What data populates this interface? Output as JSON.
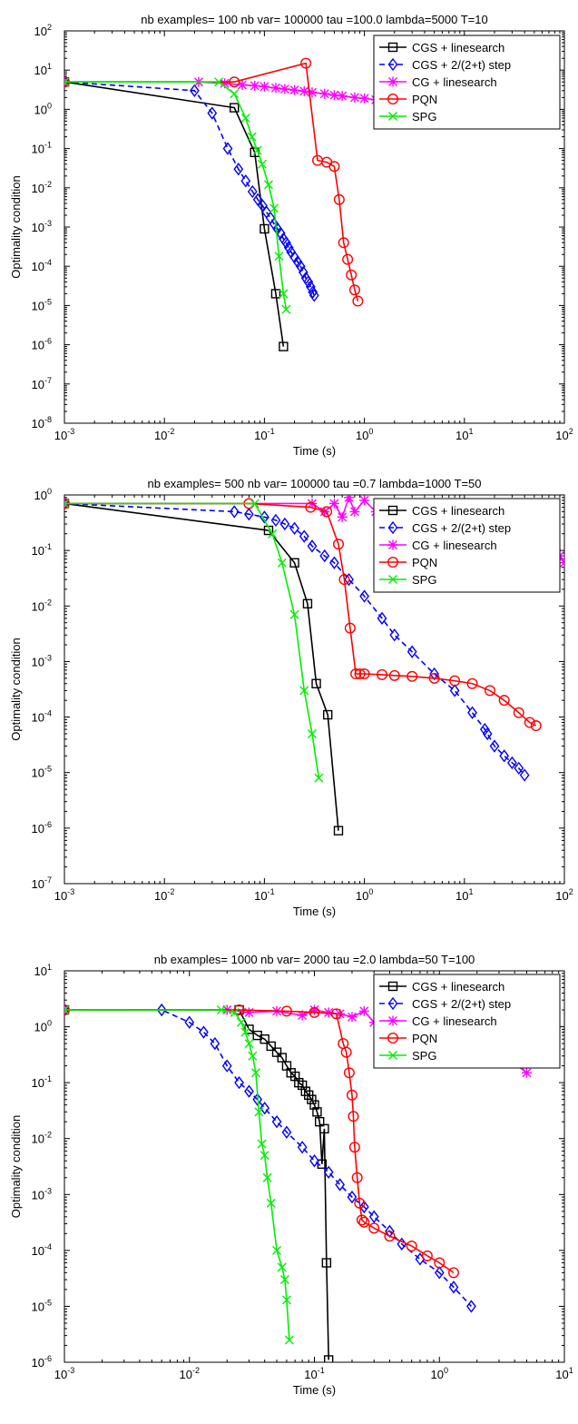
{
  "chart_data": [
    {
      "type": "line",
      "title": "nb examples= 100  nb var= 100000  tau =100.0 lambda=5000 T=10",
      "xlabel": "Time (s)",
      "ylabel": "Optimality condition",
      "xscale": "log",
      "yscale": "log",
      "xlim": [
        0.001,
        100
      ],
      "ylim": [
        1e-08,
        100
      ],
      "legend_position": "top-right",
      "series": [
        {
          "name": "CGS + linesearch",
          "color": "#000000",
          "dash": "solid",
          "marker": "square",
          "x": [
            0.001,
            0.05,
            0.08,
            0.1,
            0.13,
            0.155
          ],
          "y": [
            5,
            1.1,
            0.08,
            0.0009,
            2e-05,
            9e-07
          ]
        },
        {
          "name": "CGS + 2/(2+t) step",
          "color": "#0000ff",
          "dash": "dashed",
          "marker": "diamond",
          "x": [
            0.001,
            0.02,
            0.03,
            0.043,
            0.055,
            0.065,
            0.076,
            0.086,
            0.096,
            0.105,
            0.115,
            0.125,
            0.135,
            0.145,
            0.155,
            0.165,
            0.175,
            0.185,
            0.2,
            0.215,
            0.23,
            0.245,
            0.26,
            0.275,
            0.29,
            0.305,
            0.315
          ],
          "y": [
            5,
            3,
            0.8,
            0.1,
            0.03,
            0.015,
            0.008,
            0.005,
            0.0035,
            0.0024,
            0.0017,
            0.0012,
            0.0009,
            0.0007,
            0.0005,
            0.0004,
            0.0003,
            0.00023,
            0.00017,
            0.00013,
            0.0001,
            7e-05,
            5e-05,
            4e-05,
            3e-05,
            2.2e-05,
            1.8e-05
          ]
        },
        {
          "name": "CG + linesearch",
          "color": "#ff00ff",
          "dash": "solid",
          "marker": "star",
          "x": [
            0.001,
            0.022,
            0.04,
            0.06,
            0.08,
            0.1,
            0.13,
            0.16,
            0.2,
            0.25,
            0.3,
            0.4,
            0.5,
            0.6,
            0.8,
            1.0,
            1.3,
            1.6,
            2.0,
            2.5,
            3.0,
            3.5
          ],
          "y": [
            5,
            5,
            4.6,
            4.2,
            4.0,
            3.8,
            3.5,
            3.3,
            3.1,
            2.9,
            2.7,
            2.5,
            2.3,
            2.2,
            2.0,
            1.9,
            1.75,
            1.6,
            1.5,
            1.4,
            1.3,
            1.25
          ]
        },
        {
          "name": "PQN",
          "color": "#ff0000",
          "dash": "solid",
          "marker": "circle",
          "x": [
            0.001,
            0.05,
            0.26,
            0.34,
            0.42,
            0.5,
            0.56,
            0.62,
            0.68,
            0.74,
            0.8,
            0.86
          ],
          "y": [
            5,
            5,
            15,
            0.05,
            0.045,
            0.035,
            0.005,
            0.0004,
            0.00015,
            6e-05,
            2.5e-05,
            1.3e-05
          ]
        },
        {
          "name": "SPG",
          "color": "#00ee00",
          "dash": "solid",
          "marker": "x",
          "x": [
            0.001,
            0.035,
            0.05,
            0.065,
            0.075,
            0.085,
            0.095,
            0.11,
            0.125,
            0.14,
            0.155,
            0.165
          ],
          "y": [
            5,
            5,
            2.5,
            0.6,
            0.2,
            0.09,
            0.04,
            0.012,
            0.003,
            0.00018,
            2e-05,
            8e-06
          ]
        }
      ]
    },
    {
      "type": "line",
      "title": "nb examples= 500  nb var= 100000  tau =0.7 lambda=1000 T=50",
      "xlabel": "Time (s)",
      "ylabel": "Optimality condition",
      "xscale": "log",
      "yscale": "log",
      "xlim": [
        0.001,
        100
      ],
      "ylim": [
        1e-07,
        1
      ],
      "legend_position": "top-right",
      "series": [
        {
          "name": "CGS + linesearch",
          "color": "#000000",
          "dash": "solid",
          "marker": "square",
          "x": [
            0.001,
            0.11,
            0.2,
            0.27,
            0.33,
            0.43,
            0.55
          ],
          "y": [
            0.7,
            0.23,
            0.06,
            0.011,
            0.0004,
            0.00011,
            9e-07
          ]
        },
        {
          "name": "CGS + 2/(2+t) step",
          "color": "#0000ff",
          "dash": "dashed",
          "marker": "diamond",
          "x": [
            0.001,
            0.05,
            0.07,
            0.1,
            0.13,
            0.16,
            0.2,
            0.25,
            0.3,
            0.4,
            0.5,
            0.7,
            1.0,
            1.5,
            2.0,
            3.0,
            5.0,
            8.0,
            12.0,
            16.0,
            17.0,
            20.0,
            25.0,
            30.0,
            35.0,
            40.0
          ],
          "y": [
            0.7,
            0.5,
            0.45,
            0.4,
            0.35,
            0.3,
            0.25,
            0.18,
            0.12,
            0.08,
            0.06,
            0.03,
            0.015,
            0.006,
            0.003,
            0.0015,
            0.0006,
            0.0003,
            0.00012,
            6e-05,
            5e-05,
            3e-05,
            2e-05,
            1.5e-05,
            1.2e-05,
            9e-06
          ]
        },
        {
          "name": "CG + linesearch",
          "color": "#ff00ff",
          "dash": "solid",
          "marker": "star",
          "x": [
            0.001,
            0.3,
            0.4,
            0.5,
            0.6,
            0.7,
            0.8,
            1.0,
            1.3,
            1.6,
            2.0,
            2.5,
            3.0,
            4.0,
            5.0,
            6.0,
            8.0,
            10.0,
            13.0,
            16.0,
            20.0,
            25.0,
            30.0,
            40.0,
            50.0,
            60.0,
            70.0,
            80.0,
            90.0,
            100.0
          ],
          "y": [
            0.7,
            0.7,
            0.5,
            0.7,
            0.4,
            0.9,
            0.5,
            0.8,
            0.5,
            0.7,
            0.4,
            0.6,
            0.45,
            0.55,
            0.35,
            0.5,
            0.3,
            0.4,
            0.25,
            0.35,
            0.2,
            0.3,
            0.18,
            0.25,
            0.14,
            0.18,
            0.11,
            0.13,
            0.08,
            0.06
          ]
        },
        {
          "name": "PQN",
          "color": "#ff0000",
          "dash": "solid",
          "marker": "circle",
          "x": [
            0.001,
            0.07,
            0.29,
            0.42,
            0.55,
            0.63,
            0.72,
            0.82,
            0.9,
            1.0,
            1.5,
            2.0,
            3.0,
            5.0,
            8.0,
            12.0,
            18.0,
            25.0,
            35.0,
            45.0,
            52.0
          ],
          "y": [
            0.7,
            0.7,
            0.6,
            0.5,
            0.13,
            0.03,
            0.004,
            0.0006,
            0.0006,
            0.0006,
            0.00058,
            0.00056,
            0.00054,
            0.0005,
            0.00045,
            0.0004,
            0.0003,
            0.0002,
            0.00012,
            8e-05,
            7e-05
          ]
        },
        {
          "name": "SPG",
          "color": "#00ee00",
          "dash": "solid",
          "marker": "x",
          "x": [
            0.001,
            0.08,
            0.12,
            0.15,
            0.2,
            0.25,
            0.3,
            0.35
          ],
          "y": [
            0.7,
            0.7,
            0.2,
            0.06,
            0.007,
            0.0003,
            5e-05,
            8e-06
          ]
        }
      ]
    },
    {
      "type": "line",
      "title": "nb examples= 1000  nb var= 2000  tau =2.0 lambda=50 T=100",
      "xlabel": "Time (s)",
      "ylabel": "Optimality condition",
      "xscale": "log",
      "yscale": "log",
      "xlim": [
        0.001,
        10
      ],
      "ylim": [
        1e-06,
        10
      ],
      "legend_position": "top-right",
      "series": [
        {
          "name": "CGS + linesearch",
          "color": "#000000",
          "dash": "solid",
          "marker": "square",
          "x": [
            0.001,
            0.025,
            0.03,
            0.035,
            0.04,
            0.045,
            0.05,
            0.055,
            0.06,
            0.065,
            0.07,
            0.075,
            0.08,
            0.085,
            0.09,
            0.095,
            0.1,
            0.105,
            0.11,
            0.115,
            0.12,
            0.125,
            0.13
          ],
          "y": [
            2,
            2,
            0.9,
            0.7,
            0.6,
            0.45,
            0.35,
            0.28,
            0.2,
            0.15,
            0.13,
            0.1,
            0.09,
            0.07,
            0.06,
            0.05,
            0.04,
            0.03,
            0.02,
            0.0035,
            0.015,
            6e-05,
            1.1e-06
          ]
        },
        {
          "name": "CGS + 2/(2+t) step",
          "color": "#0000ff",
          "dash": "dashed",
          "marker": "diamond",
          "x": [
            0.001,
            0.006,
            0.01,
            0.013,
            0.016,
            0.02,
            0.025,
            0.03,
            0.035,
            0.04,
            0.05,
            0.06,
            0.08,
            0.1,
            0.13,
            0.16,
            0.2,
            0.25,
            0.3,
            0.4,
            0.5,
            0.7,
            1.0,
            1.3,
            1.8
          ],
          "y": [
            2,
            2,
            1.2,
            0.8,
            0.5,
            0.2,
            0.1,
            0.07,
            0.05,
            0.035,
            0.02,
            0.013,
            0.007,
            0.004,
            0.0025,
            0.0015,
            0.0009,
            0.0006,
            0.0004,
            0.00022,
            0.00013,
            7e-05,
            4e-05,
            2.2e-05,
            1e-05
          ]
        },
        {
          "name": "CG + linesearch",
          "color": "#ff00ff",
          "dash": "solid",
          "marker": "star",
          "x": [
            0.001,
            0.02,
            0.03,
            0.05,
            0.08,
            0.1,
            0.13,
            0.16,
            0.2,
            0.25,
            0.3,
            0.4,
            0.5,
            0.7,
            1.0,
            1.5,
            2.0,
            3.0,
            4.0,
            5.0
          ],
          "y": [
            2,
            2,
            1.8,
            1.9,
            1.6,
            2.0,
            1.8,
            1.7,
            1.5,
            1.9,
            1.2,
            1.6,
            0.9,
            1.1,
            0.7,
            0.6,
            0.4,
            0.3,
            0.22,
            0.15
          ]
        },
        {
          "name": "PQN",
          "color": "#ff0000",
          "dash": "solid",
          "marker": "circle",
          "x": [
            0.001,
            0.025,
            0.06,
            0.1,
            0.15,
            0.17,
            0.18,
            0.19,
            0.2,
            0.205,
            0.21,
            0.22,
            0.23,
            0.24,
            0.25,
            0.3,
            0.4,
            0.6,
            0.8,
            1.0,
            1.3
          ],
          "y": [
            2,
            2,
            1.9,
            1.8,
            1.7,
            0.5,
            0.35,
            0.15,
            0.06,
            0.025,
            0.007,
            0.002,
            0.0007,
            0.00035,
            0.00032,
            0.00025,
            0.00018,
            0.00012,
            8e-05,
            6e-05,
            4e-05
          ]
        },
        {
          "name": "SPG",
          "color": "#00ee00",
          "dash": "solid",
          "marker": "x",
          "x": [
            0.001,
            0.018,
            0.023,
            0.026,
            0.028,
            0.03,
            0.032,
            0.034,
            0.036,
            0.038,
            0.04,
            0.042,
            0.045,
            0.05,
            0.055,
            0.058,
            0.06,
            0.063
          ],
          "y": [
            2,
            2,
            1.8,
            1.2,
            0.8,
            0.5,
            0.3,
            0.15,
            0.03,
            0.008,
            0.005,
            0.002,
            0.0007,
            0.0001,
            5e-05,
            3e-05,
            1.3e-05,
            2.5e-06
          ]
        }
      ]
    }
  ]
}
